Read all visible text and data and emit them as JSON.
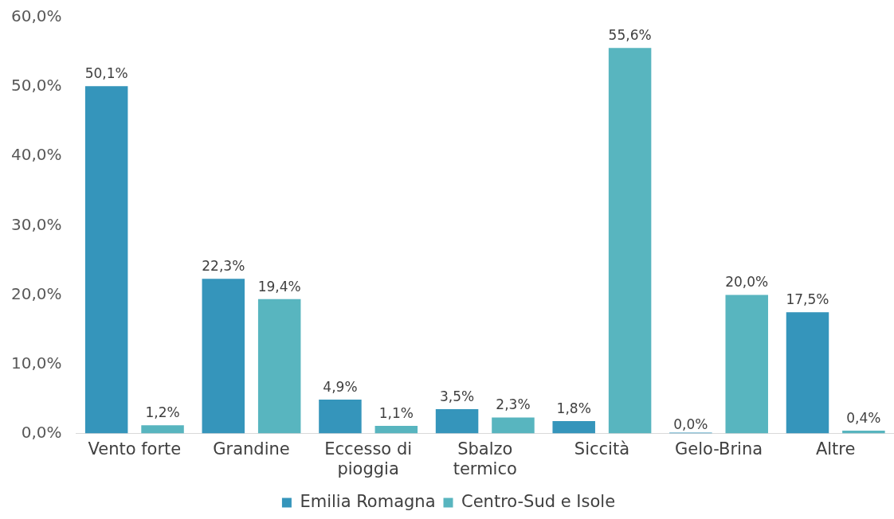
{
  "chart_data": {
    "type": "bar",
    "categories": [
      "Vento forte",
      "Grandine",
      "Eccesso di pioggia",
      "Sbalzo termico",
      "Siccità",
      "Gelo-Brina",
      "Altre"
    ],
    "series": [
      {
        "name": "Emilia Romagna",
        "color": "#3595bb",
        "values": [
          50.1,
          22.3,
          4.9,
          3.5,
          1.8,
          0.0,
          17.5
        ],
        "value_labels": [
          "50,1%",
          "22,3%",
          "4,9%",
          "3,5%",
          "1,8%",
          "0,0%",
          "17,5%"
        ]
      },
      {
        "name": "Centro-Sud e Isole",
        "color": "#58b5bf",
        "values": [
          1.2,
          19.4,
          1.1,
          2.3,
          55.6,
          20.0,
          0.4
        ],
        "value_labels": [
          "1,2%",
          "19,4%",
          "1,1%",
          "2,3%",
          "55,6%",
          "20,0%",
          "0,4%"
        ]
      }
    ],
    "ylim": [
      0,
      60
    ],
    "yticks": [
      {
        "value": 0,
        "label": "0,0%"
      },
      {
        "value": 10,
        "label": "10,0%"
      },
      {
        "value": 20,
        "label": "20,0%"
      },
      {
        "value": 30,
        "label": "30,0%"
      },
      {
        "value": 40,
        "label": "40,0%"
      },
      {
        "value": 50,
        "label": "50,0%"
      },
      {
        "value": 60,
        "label": "60,0%"
      }
    ],
    "grid": false,
    "legend": "bottom"
  }
}
